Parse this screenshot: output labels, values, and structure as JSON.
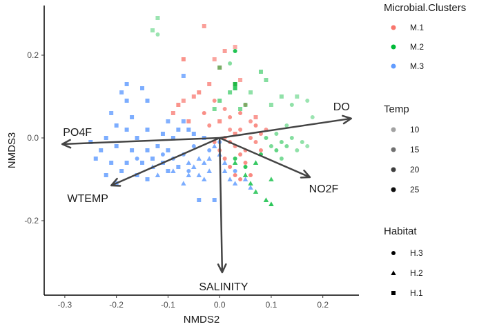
{
  "chart_data": {
    "type": "scatter",
    "xlabel": "NMDS2",
    "ylabel": "NMDS3",
    "xlim": [
      -0.34,
      0.27
    ],
    "ylim": [
      -0.38,
      0.32
    ],
    "x_ticks": [
      -0.3,
      -0.2,
      -0.1,
      0.0,
      0.1,
      0.2
    ],
    "x_tick_labels": [
      "-0.3",
      "-0.2",
      "-0.1",
      "0.0",
      "0.1",
      "0.2"
    ],
    "y_ticks": [
      -0.2,
      0.0,
      0.2
    ],
    "y_tick_labels": [
      "-0.2",
      "0.0",
      "0.2"
    ],
    "grid": false,
    "vectors": [
      {
        "label": "DO",
        "x": 0.255,
        "y": 0.047
      },
      {
        "label": "PO4F",
        "x": -0.305,
        "y": -0.015
      },
      {
        "label": "NO2F",
        "x": 0.175,
        "y": -0.095
      },
      {
        "label": "WTEMP",
        "x": -0.21,
        "y": -0.115
      },
      {
        "label": "SALINITY",
        "x": 0.005,
        "y": -0.325
      }
    ],
    "legend": {
      "placement": "right",
      "clusters": {
        "title": "Microbial.Clusters",
        "items": [
          {
            "label": "M.1",
            "color": "#F8766D"
          },
          {
            "label": "M.2",
            "color": "#00BA38"
          },
          {
            "label": "M.3",
            "color": "#619CFF"
          }
        ]
      },
      "temp": {
        "title": "Temp",
        "items": [
          {
            "label": "10",
            "value": 10
          },
          {
            "label": "15",
            "value": 15
          },
          {
            "label": "20",
            "value": 20
          },
          {
            "label": "25",
            "value": 25
          }
        ]
      },
      "habitat": {
        "title": "Habitat",
        "items": [
          {
            "label": "H.3",
            "shape": "circle"
          },
          {
            "label": "H.2",
            "shape": "triangle"
          },
          {
            "label": "H.1",
            "shape": "square"
          }
        ]
      }
    },
    "series": [
      {
        "cluster": "M.1",
        "color": "#F8766D",
        "points": [
          [
            -0.03,
            0.27,
            "H.1",
            18
          ],
          [
            0.01,
            0.21,
            "H.1",
            18
          ],
          [
            0.03,
            0.22,
            "H.1",
            16
          ],
          [
            -0.07,
            0.19,
            "H.1",
            20
          ],
          [
            0.0,
            0.17,
            "H.1",
            18
          ],
          [
            -0.01,
            0.19,
            "H.1",
            17
          ],
          [
            -0.02,
            0.13,
            "H.1",
            19
          ],
          [
            -0.04,
            0.11,
            "H.1",
            20
          ],
          [
            -0.05,
            0.1,
            "H.1",
            19
          ],
          [
            -0.07,
            0.09,
            "H.1",
            18
          ],
          [
            -0.08,
            0.08,
            "H.1",
            20
          ],
          [
            -0.09,
            0.06,
            "H.1",
            19
          ],
          [
            -0.06,
            0.04,
            "H.1",
            20
          ],
          [
            -0.03,
            0.06,
            "H.3",
            21
          ],
          [
            -0.01,
            0.09,
            "H.3",
            20
          ],
          [
            0.01,
            0.07,
            "H.3",
            19
          ],
          [
            0.02,
            0.05,
            "H.3",
            20
          ],
          [
            0.04,
            0.06,
            "H.3",
            21
          ],
          [
            0.05,
            0.08,
            "H.3",
            20
          ],
          [
            0.06,
            0.04,
            "H.3",
            19
          ],
          [
            0.07,
            0.03,
            "H.3",
            21
          ],
          [
            0.08,
            0.01,
            "H.3",
            20
          ],
          [
            0.04,
            0.02,
            "H.3",
            20
          ],
          [
            0.02,
            0.02,
            "H.3",
            19
          ],
          [
            0.01,
            0.0,
            "H.3",
            20
          ],
          [
            -0.01,
            -0.01,
            "H.3",
            21
          ],
          [
            0.0,
            -0.03,
            "H.3",
            20
          ],
          [
            0.01,
            -0.05,
            "H.3",
            21
          ],
          [
            0.03,
            -0.02,
            "H.3",
            20
          ],
          [
            0.04,
            -0.04,
            "H.3",
            21
          ],
          [
            0.05,
            -0.06,
            "H.3",
            21
          ],
          [
            0.02,
            -0.07,
            "H.3",
            22
          ],
          [
            0.03,
            -0.09,
            "H.3",
            22
          ],
          [
            0.04,
            -0.1,
            "H.3",
            22
          ],
          [
            0.06,
            -0.09,
            "H.3",
            22
          ],
          [
            0.05,
            -0.03,
            "H.3",
            21
          ],
          [
            0.07,
            -0.01,
            "H.3",
            20
          ],
          [
            0.06,
            0.0,
            "H.3",
            21
          ],
          [
            0.08,
            -0.03,
            "H.3",
            21
          ],
          [
            0.03,
            0.01,
            "H.1",
            20
          ],
          [
            0.09,
            0.02,
            "H.3",
            19
          ],
          [
            -0.02,
            0.03,
            "H.3",
            20
          ],
          [
            0.0,
            0.04,
            "H.1",
            20
          ],
          [
            0.03,
            0.13,
            "H.1",
            18
          ],
          [
            0.04,
            0.14,
            "H.1",
            17
          ],
          [
            0.02,
            -0.01,
            "H.3",
            21
          ],
          [
            0.07,
            0.05,
            "H.1",
            19
          ]
        ]
      },
      {
        "cluster": "M.2",
        "color": "#00BA38",
        "points": [
          [
            -0.12,
            0.29,
            "H.1",
            11
          ],
          [
            -0.12,
            0.25,
            "H.3",
            11
          ],
          [
            -0.13,
            0.26,
            "H.1",
            11
          ],
          [
            0.03,
            0.21,
            "H.3",
            22
          ],
          [
            0.0,
            0.17,
            "H.1",
            14
          ],
          [
            0.02,
            0.18,
            "H.3",
            13
          ],
          [
            0.08,
            0.16,
            "H.1",
            14
          ],
          [
            0.09,
            0.14,
            "H.1",
            13
          ],
          [
            0.03,
            0.13,
            "H.1",
            22
          ],
          [
            0.03,
            0.12,
            "H.1",
            20
          ],
          [
            0.02,
            0.11,
            "H.1",
            15
          ],
          [
            0.06,
            0.11,
            "H.1",
            12
          ],
          [
            0.12,
            0.1,
            "H.1",
            12
          ],
          [
            0.15,
            0.1,
            "H.1",
            11
          ],
          [
            0.1,
            0.08,
            "H.1",
            12
          ],
          [
            0.04,
            0.07,
            "H.1",
            14
          ],
          [
            0.0,
            0.09,
            "H.1",
            15
          ],
          [
            -0.01,
            0.07,
            "H.1",
            14
          ],
          [
            0.05,
            0.08,
            "H.1",
            13
          ],
          [
            0.17,
            0.09,
            "H.3",
            11
          ],
          [
            0.14,
            0.08,
            "H.3",
            12
          ],
          [
            0.18,
            0.05,
            "H.3",
            11
          ],
          [
            0.13,
            0.03,
            "H.3",
            12
          ],
          [
            0.11,
            0.01,
            "H.3",
            13
          ],
          [
            0.12,
            -0.01,
            "H.3",
            14
          ],
          [
            0.1,
            -0.02,
            "H.3",
            14
          ],
          [
            0.09,
            0.0,
            "H.3",
            15
          ],
          [
            0.11,
            -0.03,
            "H.3",
            16
          ],
          [
            0.13,
            -0.02,
            "H.3",
            14
          ],
          [
            0.14,
            0.0,
            "H.3",
            13
          ],
          [
            0.15,
            -0.03,
            "H.3",
            12
          ],
          [
            0.17,
            -0.02,
            "H.3",
            11
          ],
          [
            0.08,
            -0.04,
            "H.3",
            20
          ],
          [
            0.07,
            -0.06,
            "H.2",
            20
          ],
          [
            0.05,
            -0.07,
            "H.3",
            21
          ],
          [
            0.03,
            -0.06,
            "H.2",
            20
          ],
          [
            0.03,
            -0.05,
            "H.3",
            20
          ],
          [
            0.1,
            -0.1,
            "H.2",
            19
          ],
          [
            0.07,
            -0.13,
            "H.2",
            19
          ],
          [
            0.09,
            -0.15,
            "H.2",
            20
          ],
          [
            0.1,
            -0.16,
            "H.2",
            21
          ],
          [
            0.05,
            -0.09,
            "H.2",
            20
          ],
          [
            0.06,
            -0.11,
            "H.2",
            20
          ],
          [
            0.12,
            -0.05,
            "H.3",
            14
          ],
          [
            0.16,
            -0.01,
            "H.3",
            12
          ]
        ]
      },
      {
        "cluster": "M.3",
        "color": "#619CFF",
        "points": [
          [
            -0.07,
            0.15,
            "H.1",
            20
          ],
          [
            -0.15,
            0.12,
            "H.1",
            21
          ],
          [
            -0.18,
            0.13,
            "H.1",
            21
          ],
          [
            -0.19,
            0.11,
            "H.1",
            20
          ],
          [
            -0.14,
            0.09,
            "H.1",
            21
          ],
          [
            -0.18,
            0.09,
            "H.1",
            21
          ],
          [
            -0.21,
            0.06,
            "H.1",
            20
          ],
          [
            -0.17,
            0.05,
            "H.1",
            21
          ],
          [
            -0.2,
            0.03,
            "H.1",
            21
          ],
          [
            -0.14,
            0.02,
            "H.1",
            21
          ],
          [
            -0.08,
            0.02,
            "H.1",
            21
          ],
          [
            -0.07,
            0.04,
            "H.1",
            20
          ],
          [
            -0.1,
            0.04,
            "H.1",
            20
          ],
          [
            -0.05,
            0.01,
            "H.1",
            21
          ],
          [
            -0.11,
            0.01,
            "H.1",
            21
          ],
          [
            -0.16,
            0.0,
            "H.1",
            21
          ],
          [
            -0.18,
            0.02,
            "H.1",
            21
          ],
          [
            -0.22,
            0.0,
            "H.1",
            21
          ],
          [
            -0.25,
            -0.01,
            "H.1",
            21
          ],
          [
            -0.23,
            -0.03,
            "H.1",
            21
          ],
          [
            -0.2,
            -0.02,
            "H.1",
            21
          ],
          [
            -0.17,
            -0.03,
            "H.1",
            21
          ],
          [
            -0.14,
            -0.03,
            "H.1",
            21
          ],
          [
            -0.12,
            -0.02,
            "H.1",
            21
          ],
          [
            -0.1,
            -0.03,
            "H.1",
            21
          ],
          [
            -0.09,
            0.0,
            "H.1",
            21
          ],
          [
            -0.24,
            -0.05,
            "H.1",
            21
          ],
          [
            -0.21,
            -0.06,
            "H.1",
            21
          ],
          [
            -0.18,
            -0.06,
            "H.1",
            21
          ],
          [
            -0.15,
            -0.06,
            "H.1",
            21
          ],
          [
            -0.13,
            -0.05,
            "H.1",
            21
          ],
          [
            -0.11,
            -0.06,
            "H.1",
            21
          ],
          [
            -0.19,
            -0.08,
            "H.1",
            21
          ],
          [
            -0.16,
            -0.09,
            "H.1",
            21
          ],
          [
            -0.14,
            -0.1,
            "H.1",
            21
          ],
          [
            -0.22,
            -0.09,
            "H.1",
            21
          ],
          [
            -0.2,
            -0.11,
            "H.1",
            21
          ],
          [
            -0.1,
            -0.08,
            "H.1",
            21
          ],
          [
            -0.08,
            -0.07,
            "H.1",
            21
          ],
          [
            -0.12,
            -0.09,
            "H.2",
            21
          ],
          [
            -0.09,
            -0.08,
            "H.2",
            21
          ],
          [
            -0.06,
            -0.06,
            "H.2",
            21
          ],
          [
            -0.06,
            -0.09,
            "H.2",
            21
          ],
          [
            -0.05,
            -0.07,
            "H.2",
            21
          ],
          [
            -0.04,
            -0.05,
            "H.2",
            21
          ],
          [
            -0.03,
            -0.06,
            "H.2",
            21
          ],
          [
            -0.02,
            -0.08,
            "H.2",
            21
          ],
          [
            -0.04,
            -0.09,
            "H.2",
            21
          ],
          [
            -0.02,
            -0.05,
            "H.2",
            21
          ],
          [
            0.0,
            -0.04,
            "H.2",
            21
          ],
          [
            0.01,
            -0.06,
            "H.2",
            21
          ],
          [
            0.01,
            -0.08,
            "H.2",
            21
          ],
          [
            0.02,
            -0.1,
            "H.2",
            21
          ],
          [
            0.03,
            -0.11,
            "H.2",
            21
          ],
          [
            0.05,
            -0.1,
            "H.2",
            21
          ],
          [
            0.06,
            -0.12,
            "H.2",
            21
          ],
          [
            -0.03,
            -0.1,
            "H.2",
            21
          ],
          [
            -0.07,
            -0.11,
            "H.2",
            21
          ],
          [
            -0.13,
            -0.07,
            "H.2",
            21
          ],
          [
            -0.01,
            -0.02,
            "H.2",
            21
          ],
          [
            -0.04,
            -0.15,
            "H.1",
            21
          ],
          [
            -0.01,
            -0.15,
            "H.1",
            21
          ],
          [
            -0.03,
            0.0,
            "H.1",
            21
          ],
          [
            -0.06,
            0.02,
            "H.1",
            21
          ],
          [
            -0.09,
            -0.05,
            "H.3",
            21
          ],
          [
            -0.11,
            -0.04,
            "H.3",
            21
          ],
          [
            -0.16,
            -0.05,
            "H.3",
            21
          ],
          [
            -0.07,
            -0.04,
            "H.3",
            21
          ],
          [
            -0.02,
            -0.03,
            "H.3",
            21
          ],
          [
            0.0,
            -0.01,
            "H.3",
            21
          ],
          [
            0.03,
            -0.08,
            "H.3",
            21
          ],
          [
            -0.05,
            -0.02,
            "H.3",
            21
          ],
          [
            -0.06,
            -0.08,
            "H.3",
            21
          ]
        ]
      }
    ]
  }
}
